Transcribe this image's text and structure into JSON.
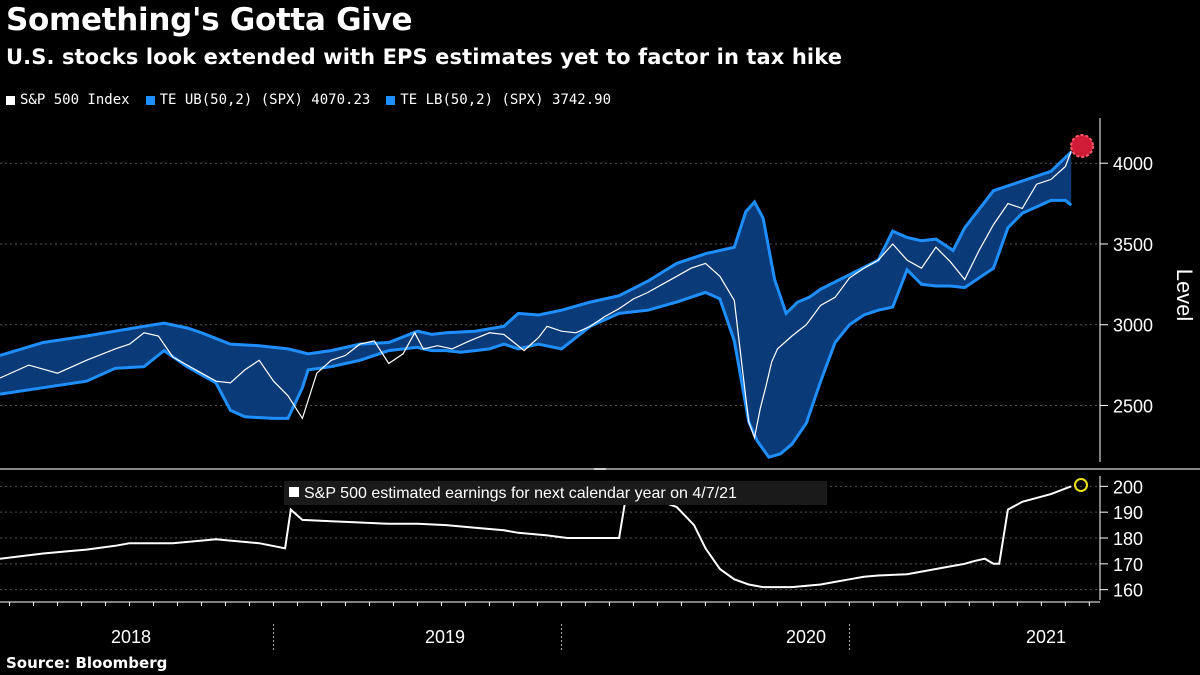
{
  "header": {
    "title": "Something's Gotta Give",
    "subtitle": "U.S. stocks look extended with EPS estimates yet to factor in tax hike"
  },
  "legend": [
    {
      "label": "S&P 500 Index",
      "color": "#ffffff"
    },
    {
      "label": "TE UB(50,2) (SPX) 4070.23",
      "color": "#1f8fff"
    },
    {
      "label": "TE LB(50,2) (SPX) 3742.90",
      "color": "#1f8fff"
    }
  ],
  "source": "Source: Bloomberg",
  "colors": {
    "background": "#000000",
    "band_line": "#1f8fff",
    "band_fill": "#0b3a78",
    "price": "#ffffff",
    "grid": "#555555",
    "highlight_red": "#d11c38",
    "highlight_yellow": "#e8e21a"
  },
  "chart_data": [
    {
      "type": "line",
      "title": "Something's Gotta Give",
      "ylabel": "Level",
      "ylim": [
        2150,
        4280
      ],
      "yticks": [
        2500,
        3000,
        3500,
        4000
      ],
      "x_unit": "year",
      "xlim": [
        2017.55,
        2021.37
      ],
      "series": [
        {
          "name": "S&P 500 Index",
          "x": [
            2017.55,
            2017.65,
            2017.75,
            2017.85,
            2017.95,
            2018.0,
            2018.05,
            2018.1,
            2018.15,
            2018.2,
            2018.25,
            2018.3,
            2018.35,
            2018.4,
            2018.45,
            2018.5,
            2018.55,
            2018.6,
            2018.65,
            2018.7,
            2018.75,
            2018.8,
            2018.85,
            2018.9,
            2018.95,
            2018.99,
            2019.02,
            2019.07,
            2019.12,
            2019.18,
            2019.25,
            2019.3,
            2019.37,
            2019.42,
            2019.45,
            2019.5,
            2019.55,
            2019.6,
            2019.65,
            2019.7,
            2019.75,
            2019.8,
            2019.85,
            2019.9,
            2019.95,
            2020.0,
            2020.05,
            2020.1,
            2020.13,
            2020.15,
            2020.17,
            2020.19,
            2020.21,
            2020.23,
            2020.25,
            2020.3,
            2020.35,
            2020.4,
            2020.45,
            2020.5,
            2020.55,
            2020.6,
            2020.65,
            2020.7,
            2020.75,
            2020.8,
            2020.85,
            2020.9,
            2020.95,
            2021.0,
            2021.05,
            2021.1,
            2021.15,
            2021.2,
            2021.25,
            2021.27
          ],
          "values": [
            2670,
            2750,
            2700,
            2780,
            2850,
            2880,
            2950,
            2930,
            2800,
            2750,
            2700,
            2650,
            2640,
            2720,
            2780,
            2650,
            2560,
            2420,
            2700,
            2780,
            2810,
            2880,
            2900,
            2760,
            2820,
            2950,
            2850,
            2870,
            2850,
            2900,
            2950,
            2940,
            2840,
            2920,
            2990,
            2960,
            2950,
            2990,
            3050,
            3100,
            3160,
            3200,
            3250,
            3300,
            3350,
            3380,
            3300,
            3150,
            2700,
            2400,
            2300,
            2480,
            2620,
            2770,
            2850,
            2930,
            3000,
            3120,
            3170,
            3290,
            3350,
            3400,
            3500,
            3400,
            3350,
            3480,
            3390,
            3280,
            3460,
            3620,
            3750,
            3720,
            3870,
            3900,
            3980,
            4075
          ]
        },
        {
          "name": "TE UB(50,2) (SPX) 4070.23",
          "x": [
            2017.55,
            2017.7,
            2017.85,
            2017.95,
            2018.05,
            2018.12,
            2018.2,
            2018.25,
            2018.35,
            2018.45,
            2018.55,
            2018.62,
            2018.7,
            2018.8,
            2018.9,
            2019.0,
            2019.05,
            2019.1,
            2019.2,
            2019.3,
            2019.35,
            2019.42,
            2019.5,
            2019.6,
            2019.7,
            2019.8,
            2019.9,
            2020.0,
            2020.1,
            2020.14,
            2020.17,
            2020.2,
            2020.24,
            2020.28,
            2020.32,
            2020.36,
            2020.4,
            2020.5,
            2020.6,
            2020.65,
            2020.7,
            2020.75,
            2020.8,
            2020.86,
            2020.9,
            2021.0,
            2021.1,
            2021.2,
            2021.27
          ],
          "values": [
            2810,
            2890,
            2930,
            2960,
            2990,
            3010,
            2980,
            2950,
            2880,
            2870,
            2850,
            2820,
            2840,
            2880,
            2890,
            2960,
            2940,
            2950,
            2960,
            2990,
            3070,
            3060,
            3090,
            3140,
            3180,
            3270,
            3380,
            3440,
            3480,
            3700,
            3760,
            3660,
            3280,
            3070,
            3140,
            3170,
            3220,
            3310,
            3400,
            3580,
            3540,
            3520,
            3530,
            3460,
            3600,
            3830,
            3890,
            3950,
            4070
          ]
        },
        {
          "name": "TE LB(50,2) (SPX) 3742.90",
          "x": [
            2017.55,
            2017.7,
            2017.85,
            2017.95,
            2018.05,
            2018.12,
            2018.2,
            2018.25,
            2018.3,
            2018.35,
            2018.4,
            2018.5,
            2018.55,
            2018.6,
            2018.62,
            2018.7,
            2018.75,
            2018.8,
            2018.9,
            2019.0,
            2019.02,
            2019.05,
            2019.1,
            2019.15,
            2019.2,
            2019.25,
            2019.3,
            2019.35,
            2019.42,
            2019.5,
            2019.6,
            2019.7,
            2019.8,
            2019.9,
            2020.0,
            2020.05,
            2020.1,
            2020.15,
            2020.18,
            2020.22,
            2020.26,
            2020.3,
            2020.35,
            2020.4,
            2020.45,
            2020.5,
            2020.55,
            2020.6,
            2020.65,
            2020.7,
            2020.75,
            2020.8,
            2020.85,
            2020.9,
            2021.0,
            2021.05,
            2021.1,
            2021.2,
            2021.25,
            2021.27
          ],
          "values": [
            2570,
            2610,
            2650,
            2730,
            2740,
            2840,
            2740,
            2690,
            2640,
            2470,
            2430,
            2420,
            2420,
            2610,
            2720,
            2740,
            2760,
            2780,
            2840,
            2860,
            2850,
            2840,
            2840,
            2830,
            2840,
            2850,
            2880,
            2850,
            2880,
            2850,
            2990,
            3070,
            3090,
            3140,
            3200,
            3160,
            2900,
            2400,
            2280,
            2180,
            2200,
            2260,
            2390,
            2650,
            2890,
            3000,
            3060,
            3090,
            3110,
            3340,
            3250,
            3240,
            3240,
            3230,
            3350,
            3600,
            3690,
            3770,
            3770,
            3740
          ]
        }
      ]
    },
    {
      "type": "line",
      "title": "",
      "ylim": [
        156,
        204
      ],
      "yticks": [
        160,
        170,
        180,
        190,
        200
      ],
      "x_unit": "year",
      "xlim": [
        2017.55,
        2021.37
      ],
      "series": [
        {
          "name": "S&P 500 estimated earnings for next calendar year on 4/7/21",
          "x": [
            2017.55,
            2017.7,
            2017.8,
            2017.85,
            2017.95,
            2018.0,
            2018.1,
            2018.15,
            2018.25,
            2018.3,
            2018.35,
            2018.45,
            2018.54,
            2018.56,
            2018.6,
            2018.7,
            2018.8,
            2018.9,
            2019.0,
            2019.1,
            2019.2,
            2019.3,
            2019.35,
            2019.45,
            2019.52,
            2019.55,
            2019.7,
            2019.72,
            2019.75,
            2019.78,
            2019.82,
            2019.85,
            2019.9,
            2019.96,
            2020.0,
            2020.05,
            2020.1,
            2020.15,
            2020.2,
            2020.25,
            2020.3,
            2020.4,
            2020.45,
            2020.5,
            2020.55,
            2020.6,
            2020.7,
            2020.75,
            2020.8,
            2020.85,
            2020.9,
            2020.93,
            2020.97,
            2021.0,
            2021.02,
            2021.05,
            2021.1,
            2021.2,
            2021.27
          ],
          "values": [
            172,
            174,
            175,
            175.5,
            177,
            178,
            178,
            178,
            179,
            179.5,
            179,
            178,
            176,
            191,
            187,
            186.5,
            186,
            185.5,
            185.5,
            185,
            184,
            183,
            182,
            181,
            180,
            180,
            180,
            193.5,
            194,
            194.5,
            195,
            194,
            192,
            185,
            176,
            168,
            164,
            162,
            161,
            161,
            161,
            162,
            163,
            164,
            165,
            165.5,
            166,
            167,
            168,
            169,
            170,
            171,
            172,
            170,
            170,
            191,
            194,
            197,
            200
          ]
        }
      ]
    }
  ],
  "x_axis": {
    "labels": [
      "2018",
      "2019",
      "2020",
      "2021"
    ]
  }
}
